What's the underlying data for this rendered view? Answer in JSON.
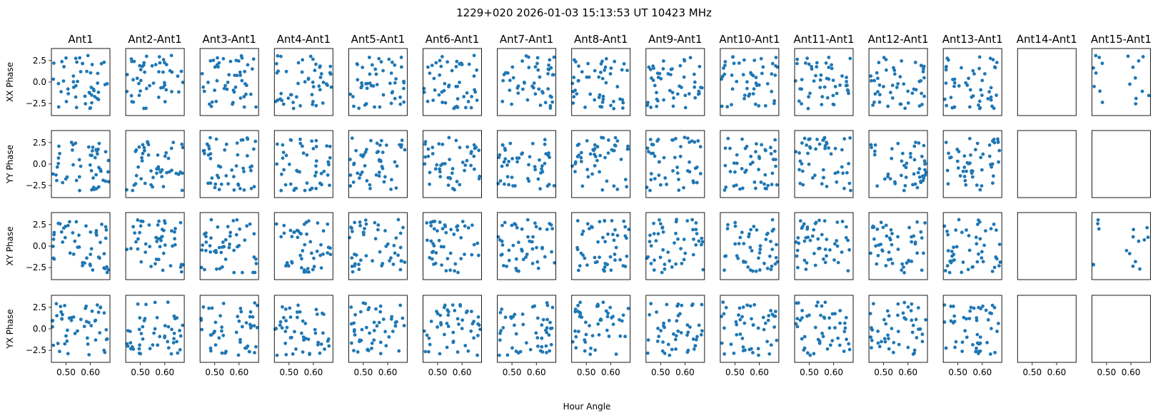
{
  "title": "1229+020  2026-01-03 15:13:53 UT  10423 MHz",
  "xlabel": "Hour Angle",
  "x_ticks": [
    "0.50",
    "0.60"
  ],
  "y_ticks": [
    "2.5",
    "0.0",
    "−2.5"
  ],
  "chart_data": {
    "type": "scatter",
    "title": "1229+020  2026-01-03 15:13:53 UT  10423 MHz",
    "xlabel": "Hour Angle",
    "xlim": [
      0.44,
      0.68
    ],
    "ylim": [
      -3.9,
      3.9
    ],
    "x_ticks": [
      0.5,
      0.6
    ],
    "y_ticks": [
      2.5,
      0.0,
      -2.5
    ],
    "point_color": "#1f77b4",
    "grid": false,
    "columns": [
      "Ant1",
      "Ant2-Ant1",
      "Ant3-Ant1",
      "Ant4-Ant1",
      "Ant5-Ant1",
      "Ant6-Ant1",
      "Ant7-Ant1",
      "Ant8-Ant1",
      "Ant9-Ant1",
      "Ant10-Ant1",
      "Ant11-Ant1",
      "Ant12-Ant1",
      "Ant13-Ant1",
      "Ant14-Ant1",
      "Ant15-Ant1"
    ],
    "rows": [
      "XX Phase",
      "YY Phase",
      "XY Phase",
      "YX Phase"
    ],
    "points_per_panel": 50,
    "empty_panels": [
      {
        "row": "XX Phase",
        "column": "Ant14-Ant1"
      },
      {
        "row": "YY Phase",
        "column": "Ant14-Ant1"
      },
      {
        "row": "YY Phase",
        "column": "Ant15-Ant1"
      },
      {
        "row": "XY Phase",
        "column": "Ant14-Ant1"
      },
      {
        "row": "YX Phase",
        "column": "Ant14-Ant1"
      },
      {
        "row": "YX Phase",
        "column": "Ant15-Ant1"
      }
    ],
    "partial_panels": [
      {
        "row": "XX Phase",
        "column": "Ant15-Ant1",
        "points": 18
      },
      {
        "row": "XY Phase",
        "column": "Ant15-Ant1",
        "points": 16
      }
    ],
    "samples": [
      {
        "row": "XX Phase",
        "column": "Ant1",
        "points": [
          [
            0.45,
            2.2
          ],
          [
            0.47,
            -2.9
          ],
          [
            0.5,
            2.8
          ],
          [
            0.53,
            0.7
          ],
          [
            0.56,
            1.2
          ],
          [
            0.6,
            -3.0
          ],
          [
            0.63,
            1.0
          ],
          [
            0.66,
            -0.3
          ]
        ]
      },
      {
        "row": "YY Phase",
        "column": "Ant6-Ant1",
        "points": [
          [
            0.45,
            2.6
          ],
          [
            0.48,
            1.2
          ],
          [
            0.51,
            -0.9
          ],
          [
            0.55,
            -1.6
          ],
          [
            0.59,
            -2.4
          ],
          [
            0.62,
            0.4
          ],
          [
            0.65,
            -0.6
          ]
        ]
      }
    ]
  }
}
